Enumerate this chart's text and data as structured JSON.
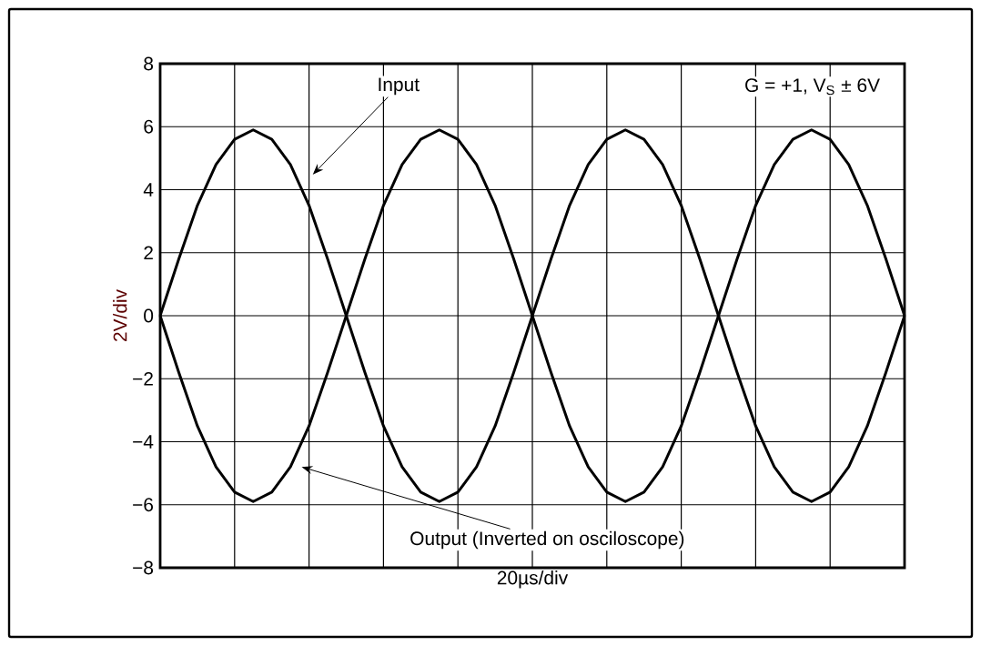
{
  "chart_data": {
    "type": "line",
    "xlabel": "20µs/div",
    "ylabel": "2V/div",
    "categories": [
      null,
      null,
      null,
      null,
      null,
      null,
      null,
      null,
      null,
      null,
      null,
      null,
      null,
      null,
      null,
      null,
      null,
      null,
      null,
      null,
      null,
      null,
      null,
      null,
      null,
      null,
      null,
      null,
      null,
      null,
      null,
      null,
      null,
      null,
      null,
      null,
      null,
      null,
      null,
      null,
      null
    ],
    "series": [
      {
        "color": "#000000",
        "values": [
          0,
          1.8,
          3.5,
          4.8,
          5.6,
          5.9,
          5.6,
          4.8,
          3.5,
          1.8,
          0,
          -1.8,
          -3.5,
          -4.8,
          -5.6,
          -5.9,
          -5.6,
          -4.8,
          -3.5,
          -1.8,
          0,
          1.8,
          3.5,
          4.8,
          5.6,
          5.9,
          5.6,
          4.8,
          3.5,
          1.8,
          0,
          -1.8,
          -3.5,
          -4.8,
          -5.6,
          -5.9,
          -5.6,
          -4.8,
          -3.5,
          -1.8,
          0
        ]
      },
      {
        "color": "#000000",
        "values": [
          0,
          -1.8,
          -3.5,
          -4.8,
          -5.6,
          -5.9,
          -5.6,
          -4.8,
          -3.5,
          -1.8,
          0,
          1.8,
          3.5,
          4.8,
          5.6,
          5.9,
          5.6,
          4.8,
          3.5,
          1.8,
          0,
          -1.8,
          -3.5,
          -4.8,
          -5.6,
          -5.9,
          -5.6,
          -4.8,
          -3.5,
          -1.8,
          0,
          1.8,
          3.5,
          4.8,
          5.6,
          5.9,
          5.6,
          4.8,
          3.5,
          1.8,
          0
        ]
      }
    ],
    "ylim": [
      -8,
      8
    ],
    "yticks": [
      {
        "value": -8,
        "label": "−8"
      },
      {
        "value": -6,
        "label": "−6"
      },
      {
        "value": -4,
        "label": "−4"
      },
      {
        "value": -2,
        "label": "−2"
      },
      {
        "value": 0,
        "label": "0"
      },
      {
        "value": 2,
        "label": "2"
      },
      {
        "value": 4,
        "label": "4"
      },
      {
        "value": 6,
        "label": "6"
      },
      {
        "value": 8,
        "label": "8"
      }
    ],
    "tick_labels": "y",
    "grid": true,
    "marker": "none",
    "line_style": "solid",
    "annotations": [
      "Input",
      "Output (Inverted on osciloscope)",
      "G = +1, V$_{S}$ ± 6V"
    ]
  }
}
